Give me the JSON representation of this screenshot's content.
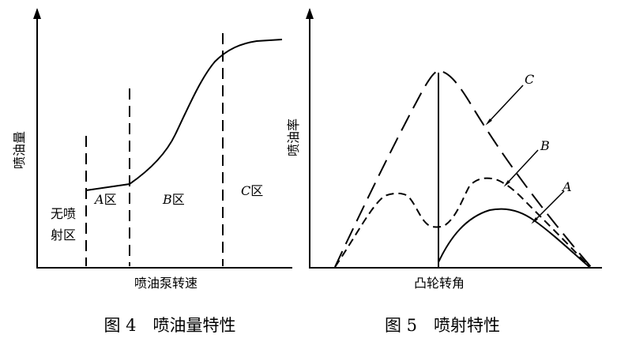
{
  "figure4": {
    "y_label": "喷油量",
    "x_label": "喷油泵转速",
    "zone_none_line1": "无喷",
    "zone_none_line2": "射区",
    "zone_a_letter": "A",
    "zone_b_letter": "B",
    "zone_c_letter": "C",
    "zone_suffix": "区",
    "caption": "图 4　喷油量特性"
  },
  "figure5": {
    "y_label": "喷油率",
    "x_label": "凸轮转角",
    "curve_a_label": "A",
    "curve_b_label": "B",
    "curve_c_label": "C",
    "caption": "图 5　喷射特性"
  }
}
